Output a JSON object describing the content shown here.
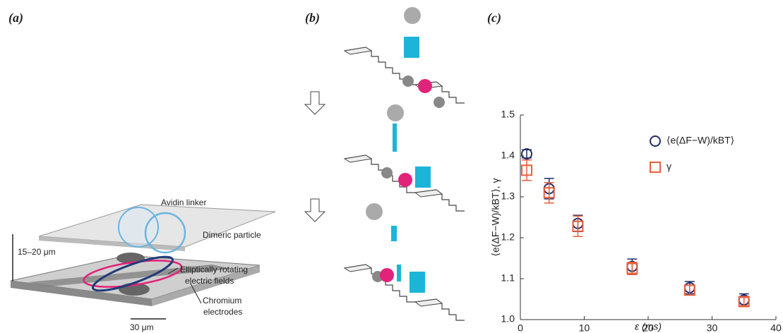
{
  "panels": [
    {
      "label": "(a)",
      "texts": [
        "Avidin linker",
        "Dimeric particle",
        "15–20 μm",
        "Elliptically rotating",
        "electric fields",
        "Chromium",
        "electrodes",
        "30 μm"
      ]
    },
    {
      "label": "(b)"
    },
    {
      "label": "(c)"
    }
  ],
  "chart_data": {
    "type": "errorbar",
    "xlabel": "ε (ms)",
    "ylabel": "⟨e(ΔF−W)/kBT⟩, γ",
    "x": [
      1,
      4.5,
      9,
      17.5,
      26.5,
      35
    ],
    "series": [
      {
        "name": "⟨e(ΔF−W)/kBT⟩",
        "color": "#1f2d6b",
        "marker": "circle",
        "values": [
          1.405,
          1.32,
          1.235,
          1.13,
          1.078,
          1.048
        ],
        "errors": [
          0.01,
          0.025,
          0.02,
          0.018,
          0.015,
          0.015
        ]
      },
      {
        "name": "γ",
        "color": "#e8603c",
        "marker": "square",
        "values": [
          1.365,
          1.31,
          1.228,
          1.125,
          1.072,
          1.044
        ],
        "errors": [
          0.025,
          0.025,
          0.025,
          0.015,
          0.012,
          0.01
        ]
      }
    ],
    "xlim": [
      0,
      40
    ],
    "xticks": [
      0,
      10,
      20,
      30,
      40
    ],
    "ylim": [
      1,
      1.5
    ],
    "yticks": [
      {
        "value": 1,
        "label": "1.0"
      },
      1.1,
      1.2,
      1.3,
      1.4,
      1.5
    ],
    "legend": "upper right"
  }
}
